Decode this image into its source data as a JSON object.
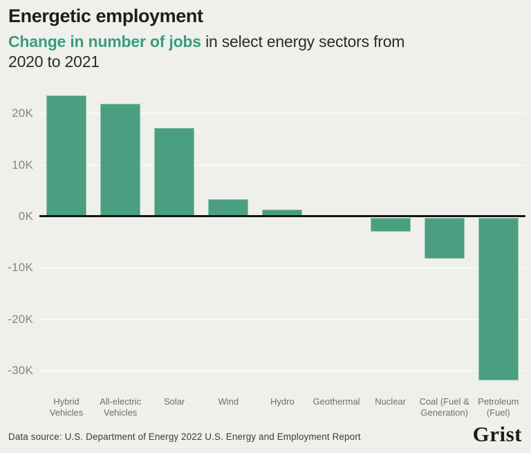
{
  "header": {
    "title": "Energetic employment",
    "subtitle_highlight": "Change in number of jobs",
    "subtitle_rest_line1": " in select energy sectors from",
    "subtitle_line2": "2020 to 2021"
  },
  "chart_data": {
    "type": "bar",
    "categories": [
      "Hybrid Vehicles",
      "All-electric Vehicles",
      "Solar",
      "Wind",
      "Hydro",
      "Geothermal",
      "Nuclear",
      "Coal (Fuel & Generation)",
      "Petroleum (Fuel)"
    ],
    "values": [
      23500,
      22000,
      17200,
      3400,
      1400,
      300,
      -2700,
      -7900,
      -31600
    ],
    "title": "Change in number of jobs in select energy sectors from 2020 to 2021",
    "xlabel": "",
    "ylabel": "",
    "ylim": [
      -33000,
      24500
    ],
    "yticks": [
      20000,
      10000,
      0,
      -10000,
      -20000,
      -30000
    ],
    "ytick_labels": [
      "20K",
      "10K",
      "0K",
      "-10K",
      "-20K",
      "-30K"
    ],
    "grid": true,
    "legend": false,
    "bar_color": "#4a9f81",
    "zero_line_color": "#151515"
  },
  "footer": {
    "source": "Data source: U.S. Department of Energy 2022 U.S. Energy and Employment Report",
    "logo": "Grist"
  },
  "colors": {
    "background": "#efefec",
    "accent_green": "#3a9d7d",
    "bar_green": "#4a9f81",
    "title_text": "#1e1e1e",
    "axis_label_gray": "#858585",
    "category_label_gray": "#6e6e6e"
  }
}
